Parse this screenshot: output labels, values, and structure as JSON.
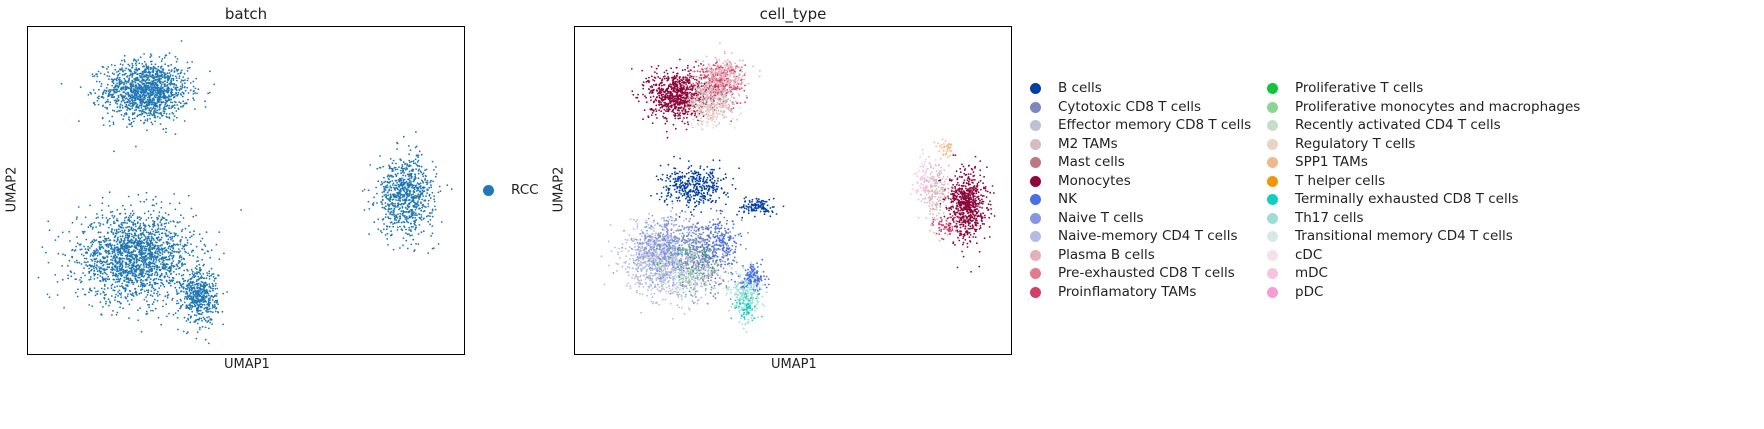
{
  "chart_data": [
    {
      "type": "scatter",
      "title": "batch",
      "xlabel": "UMAP1",
      "ylabel": "UMAP2",
      "ticks": "none",
      "legend_placement": "right",
      "categories": [
        {
          "name": "RCC",
          "color": "#1f77b4"
        }
      ],
      "clusters": [
        {
          "cx": -2.0,
          "cy": 5.6,
          "sx": 2.1,
          "sy": 1.2,
          "n": 1400,
          "category": "RCC"
        },
        {
          "cx": -2.6,
          "cy": -2.0,
          "sx": 2.9,
          "sy": 1.8,
          "n": 1900,
          "category": "RCC"
        },
        {
          "cx": 0.9,
          "cy": -3.8,
          "sx": 0.9,
          "sy": 1.1,
          "n": 500,
          "category": "RCC"
        },
        {
          "cx": 12.2,
          "cy": 0.8,
          "sx": 1.4,
          "sy": 1.6,
          "n": 800,
          "category": "RCC"
        }
      ]
    },
    {
      "type": "scatter",
      "title": "cell_type",
      "xlabel": "UMAP1",
      "ylabel": "UMAP2",
      "ticks": "none",
      "legend_placement": "right",
      "categories": [
        {
          "name": "B cells",
          "color": "#023fa5"
        },
        {
          "name": "Cytotoxic CD8 T cells",
          "color": "#7d87b9"
        },
        {
          "name": "Effector memory CD8 T cells",
          "color": "#bec1d4"
        },
        {
          "name": "M2 TAMs",
          "color": "#d6bcc0"
        },
        {
          "name": "Mast cells",
          "color": "#bb7784"
        },
        {
          "name": "Monocytes",
          "color": "#8e063b"
        },
        {
          "name": "NK",
          "color": "#4a6fe3"
        },
        {
          "name": "Naive T cells",
          "color": "#8595e1"
        },
        {
          "name": "Naive-memory CD4 T cells",
          "color": "#b5bbe3"
        },
        {
          "name": "Plasma B cells",
          "color": "#e6afb9"
        },
        {
          "name": "Pre-exhausted CD8 T cells",
          "color": "#e07b91"
        },
        {
          "name": "Proinflamatory TAMs",
          "color": "#d33f6a"
        },
        {
          "name": "Proliferative T cells",
          "color": "#11c638"
        },
        {
          "name": "Proliferative monocytes and macrophages",
          "color": "#8dd593"
        },
        {
          "name": "Recently activated CD4 T cells",
          "color": "#c6dec7"
        },
        {
          "name": "Regulatory T cells",
          "color": "#ead3c6"
        },
        {
          "name": "SPP1 TAMs",
          "color": "#f0b98d"
        },
        {
          "name": "T helper cells",
          "color": "#ef9708"
        },
        {
          "name": "Terminally exhausted CD8 T cells",
          "color": "#0fcfc0"
        },
        {
          "name": "Th17 cells",
          "color": "#9cded6"
        },
        {
          "name": "Transitional memory CD4 T cells",
          "color": "#d5eae7"
        },
        {
          "name": "cDC",
          "color": "#f3e1eb"
        },
        {
          "name": "mDC",
          "color": "#f6c4e1"
        },
        {
          "name": "pDC",
          "color": "#f79cd4"
        }
      ],
      "clusters": [
        {
          "cx": -2.9,
          "cy": 5.4,
          "sx": 1.4,
          "sy": 1.0,
          "n": 800,
          "category": "Monocytes"
        },
        {
          "cx": -0.6,
          "cy": 5.9,
          "sx": 1.2,
          "sy": 0.9,
          "n": 350,
          "category": "Proinflamatory TAMs"
        },
        {
          "cx": -1.0,
          "cy": 5.2,
          "sx": 1.3,
          "sy": 0.9,
          "n": 300,
          "category": "M2 TAMs"
        },
        {
          "cx": -0.3,
          "cy": 6.3,
          "sx": 1.1,
          "sy": 0.7,
          "n": 200,
          "category": "Plasma B cells"
        },
        {
          "cx": -1.2,
          "cy": 4.6,
          "sx": 1.0,
          "sy": 0.6,
          "n": 120,
          "category": "Regulatory T cells"
        },
        {
          "cx": -2.0,
          "cy": 1.2,
          "sx": 1.6,
          "sy": 0.8,
          "n": 400,
          "category": "B cells"
        },
        {
          "cx": 1.5,
          "cy": 0.3,
          "sx": 0.8,
          "sy": 0.35,
          "n": 120,
          "category": "B cells"
        },
        {
          "cx": -4.0,
          "cy": -2.0,
          "sx": 1.7,
          "sy": 1.4,
          "n": 650,
          "category": "Naive-memory CD4 T cells"
        },
        {
          "cx": -3.2,
          "cy": -1.6,
          "sx": 1.8,
          "sy": 1.3,
          "n": 500,
          "category": "Naive T cells"
        },
        {
          "cx": -1.5,
          "cy": -2.2,
          "sx": 1.4,
          "sy": 1.4,
          "n": 350,
          "category": "Cytotoxic CD8 T cells"
        },
        {
          "cx": -0.5,
          "cy": -1.4,
          "sx": 1.0,
          "sy": 1.0,
          "n": 200,
          "category": "NK"
        },
        {
          "cx": -2.8,
          "cy": -2.8,
          "sx": 1.9,
          "sy": 1.2,
          "n": 250,
          "category": "Effector memory CD8 T cells"
        },
        {
          "cx": -2.2,
          "cy": -3.0,
          "sx": 1.6,
          "sy": 0.9,
          "n": 100,
          "category": "Transitional memory CD4 T cells"
        },
        {
          "cx": -1.8,
          "cy": -2.6,
          "sx": 1.6,
          "sy": 0.9,
          "n": 60,
          "category": "Proliferative monocytes and macrophages"
        },
        {
          "cx": -2.4,
          "cy": -1.9,
          "sx": 1.6,
          "sy": 1.0,
          "n": 40,
          "category": "Proliferative T cells"
        },
        {
          "cx": 0.9,
          "cy": -3.7,
          "sx": 0.7,
          "sy": 1.0,
          "n": 260,
          "category": "Th17 cells"
        },
        {
          "cx": 1.3,
          "cy": -2.9,
          "sx": 0.6,
          "sy": 0.6,
          "n": 120,
          "category": "NK"
        },
        {
          "cx": 0.9,
          "cy": -4.3,
          "sx": 0.6,
          "sy": 0.5,
          "n": 60,
          "category": "Terminally exhausted CD8 T cells"
        },
        {
          "cx": 13.0,
          "cy": 0.4,
          "sx": 0.9,
          "sy": 1.4,
          "n": 700,
          "category": "Monocytes"
        },
        {
          "cx": 11.3,
          "cy": 1.0,
          "sx": 0.7,
          "sy": 1.2,
          "n": 200,
          "category": "M2 TAMs"
        },
        {
          "cx": 10.6,
          "cy": 1.4,
          "sx": 0.5,
          "sy": 0.8,
          "n": 80,
          "category": "mDC"
        },
        {
          "cx": 11.8,
          "cy": -0.6,
          "sx": 0.6,
          "sy": 0.5,
          "n": 60,
          "category": "Proinflamatory TAMs"
        },
        {
          "cx": 11.8,
          "cy": 3.0,
          "sx": 0.5,
          "sy": 0.4,
          "n": 40,
          "category": "SPP1 TAMs"
        }
      ]
    }
  ],
  "legend_left": [
    {
      "label": "RCC",
      "color": "#1f77b4"
    }
  ]
}
